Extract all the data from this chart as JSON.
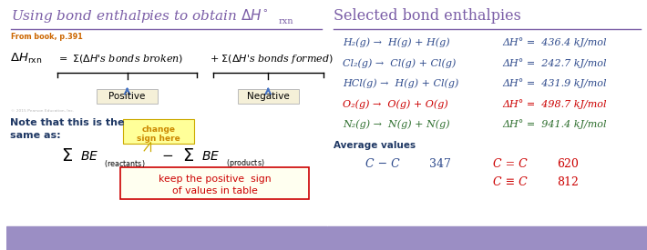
{
  "bg_color": "#ffffff",
  "purple": "#7B5EA7",
  "dark_blue": "#1F3864",
  "blue_rxn": "#2E4A8C",
  "red": "#CC0000",
  "green": "#2D6E2D",
  "orange_text": "#CC6600",
  "footer_color": "#9B8EC4",
  "arrow_blue": "#4472C4",
  "reactions": [
    {
      "eq": "H₂(g) →  H(g) + H(g)",
      "dh": "ΔH° =  436.4 kJ/mol",
      "color": "blue"
    },
    {
      "eq": "Cl₂(g) →  Cl(g) + Cl(g)",
      "dh": "ΔH° =  242.7 kJ/mol",
      "color": "blue"
    },
    {
      "eq": "HCl(g) →  H(g) + Cl(g)",
      "dh": "ΔH° =  431.9 kJ/mol",
      "color": "blue"
    },
    {
      "eq": "O₂(g) →  O(g) + O(g)",
      "dh": "ΔH° =  498.7 kJ/mol",
      "color": "red"
    },
    {
      "eq": "N₂(g) →  N(g) + N(g)",
      "dh": "ΔH° =  941.4 kJ/mol",
      "color": "green"
    }
  ]
}
